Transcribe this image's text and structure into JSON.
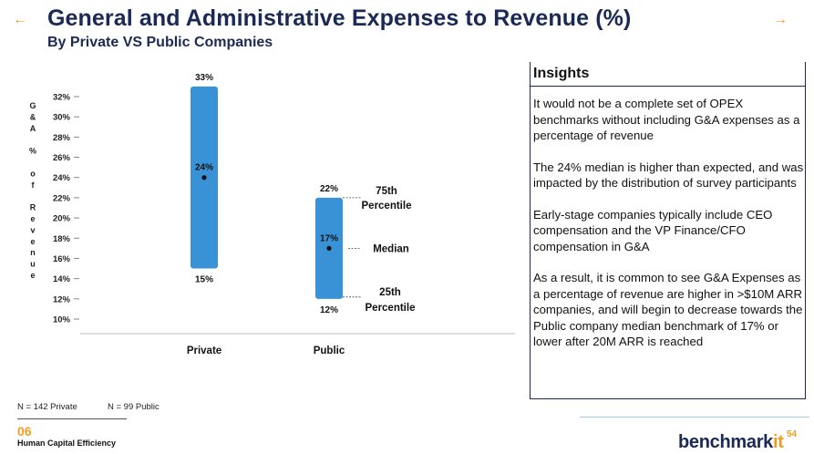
{
  "header": {
    "title": "General and Administrative Expenses to Revenue (%)",
    "subtitle": "By Private VS Public Companies",
    "arrow_icons": [
      "arrow-left-icon",
      "arrow-right-icon"
    ]
  },
  "chart_data": {
    "type": "bar",
    "subtype": "floating-range",
    "ylabel": "G&A % of Revenue",
    "ylim": [
      10,
      32
    ],
    "yticks": [
      "10%",
      "12%",
      "14%",
      "16%",
      "18%",
      "20%",
      "22%",
      "24%",
      "26%",
      "28%",
      "30%",
      "32%"
    ],
    "ytick_values": [
      10,
      12,
      14,
      16,
      18,
      20,
      22,
      24,
      26,
      28,
      30,
      32
    ],
    "categories": [
      "Private",
      "Public"
    ],
    "series": [
      {
        "category": "Private",
        "p25": 15,
        "median": 24,
        "p75": 33,
        "p25_label": "15%",
        "median_label": "24%",
        "p75_label": "33%"
      },
      {
        "category": "Public",
        "p25": 12,
        "median": 17,
        "p75": 22,
        "p25_label": "12%",
        "median_label": "17%",
        "p75_label": "22%"
      }
    ],
    "annotations": {
      "p75": [
        "75th",
        "Percentile"
      ],
      "median": "Median",
      "p25": [
        "25th",
        "Percentile"
      ]
    },
    "bar_color": "#3a92d6",
    "grid": false
  },
  "insights": {
    "heading": "Insights",
    "paragraphs": [
      "It would not be a complete set of OPEX benchmarks without including G&A expenses as a percentage of revenue",
      "The 24% median is higher than expected, and was impacted by the distribution of survey participants",
      "Early-stage companies typically include CEO compensation and the VP Finance/CFO compensation in G&A",
      "As a result, it is common to see G&A Expenses as a percentage of revenue are higher in >$10M ARR companies, and will begin to decrease towards the Public company median benchmark of 17% or lower after 20M ARR is reached"
    ]
  },
  "footer": {
    "note_private": "N = 142 Private",
    "note_public": "N = 99 Public",
    "section_number": "06",
    "section_name": "Human Capital Efficiency",
    "brand_main": "benchmark",
    "brand_accent": "it",
    "page_number": "54"
  },
  "colors": {
    "navy": "#1b2a55",
    "orange": "#f39c1f",
    "bar": "#3a92d6"
  }
}
